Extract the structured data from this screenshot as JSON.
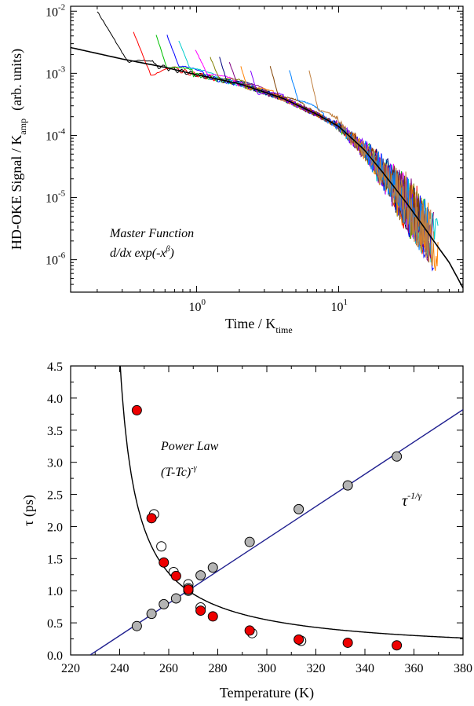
{
  "chart_data": [
    {
      "type": "line",
      "xscale": "log",
      "yscale": "log",
      "xlim": [
        0.13,
        75
      ],
      "ylim": [
        3e-07,
        0.012
      ],
      "xlabel": "Time /  K",
      "xlabel_sub": "time",
      "ylabel": "HD-OKE Signal / K",
      "ylabel_sub": "amp",
      "ylabel_suffix": "(arb. units)",
      "x_ticks": [
        {
          "base": "10",
          "exp": "0",
          "value": 1
        },
        {
          "base": "10",
          "exp": "1",
          "value": 10
        }
      ],
      "y_ticks": [
        {
          "base": "10",
          "exp": "-2",
          "value": 0.01
        },
        {
          "base": "10",
          "exp": "-3",
          "value": 0.001
        },
        {
          "base": "10",
          "exp": "-4",
          "value": 0.0001
        },
        {
          "base": "10",
          "exp": "-5",
          "value": 1e-05
        },
        {
          "base": "10",
          "exp": "-6",
          "value": 1e-06
        }
      ],
      "annotations": [
        "Master Function",
        "d/dx exp(-x",
        "β",
        ")"
      ],
      "master_function": {
        "x": [
          0.13,
          0.3,
          0.6,
          1.0,
          2.0,
          4.0,
          7.0,
          10.0,
          15.0,
          20.0,
          30.0,
          40.0,
          50.0,
          60.0,
          75.0
        ],
        "y": [
          0.0026,
          0.0017,
          0.00125,
          0.00095,
          0.00068,
          0.0004,
          0.00022,
          0.00014,
          6e-05,
          2.7e-05,
          8.2e-06,
          3.3e-06,
          1.6e-06,
          9e-07,
          3.5e-07
        ]
      },
      "series": [
        {
          "color": "#000000",
          "x0": 0.2,
          "y_peak": 0.01,
          "dip_x": 0.33,
          "dip_y": 0.0015
        },
        {
          "color": "#ff0000",
          "x0": 0.36,
          "y_peak": 0.0046,
          "dip_x": 0.48,
          "dip_y": 0.0009
        },
        {
          "color": "#00c000",
          "x0": 0.52,
          "y_peak": 0.0041,
          "dip_x": 0.62,
          "dip_y": 0.0012
        },
        {
          "color": "#0000ff",
          "x0": 0.62,
          "y_peak": 0.0041,
          "dip_x": 0.75,
          "dip_y": 0.0013
        },
        {
          "color": "#00cccc",
          "x0": 0.75,
          "y_peak": 0.0033,
          "dip_x": 0.9,
          "dip_y": 0.0012
        },
        {
          "color": "#ff00ff",
          "x0": 0.98,
          "y_peak": 0.0024,
          "dip_x": 1.2,
          "dip_y": 0.00094
        },
        {
          "color": "#808000",
          "x0": 1.25,
          "y_peak": 0.0018,
          "dip_x": 1.45,
          "dip_y": 0.0008
        },
        {
          "color": "#000080",
          "x0": 1.45,
          "y_peak": 0.0018,
          "dip_x": 1.65,
          "dip_y": 0.0007
        },
        {
          "color": "#800080",
          "x0": 1.7,
          "y_peak": 0.0015,
          "dip_x": 1.95,
          "dip_y": 0.00065
        },
        {
          "color": "#ff8000",
          "x0": 2.05,
          "y_peak": 0.0013,
          "dip_x": 2.3,
          "dip_y": 0.00055
        },
        {
          "color": "#8000ff",
          "x0": 2.4,
          "y_peak": 0.0011,
          "dip_x": 2.7,
          "dip_y": 0.00045
        },
        {
          "color": "#804000",
          "x0": 3.3,
          "y_peak": 0.0013,
          "dip_x": 3.8,
          "dip_y": 0.0004
        },
        {
          "color": "#0080ff",
          "x0": 4.5,
          "y_peak": 0.0011,
          "dip_x": 5.2,
          "dip_y": 0.00036
        },
        {
          "color": "#c08040",
          "x0": 6.2,
          "y_peak": 0.0011,
          "dip_x": 7.2,
          "dip_y": 0.00025
        }
      ]
    },
    {
      "type": "scatter",
      "xlim": [
        220,
        380
      ],
      "ylim": [
        0,
        4.5
      ],
      "xlabel": "Temperature (K)",
      "ylabel": "τ  (ps)",
      "x_ticks": [
        220,
        240,
        260,
        280,
        300,
        320,
        340,
        360,
        380
      ],
      "y_ticks": [
        0.0,
        0.5,
        1.0,
        1.5,
        2.0,
        2.5,
        3.0,
        3.5,
        4.0,
        4.5
      ],
      "x_tick_labels": [
        "220",
        "240",
        "260",
        "280",
        "300",
        "320",
        "340",
        "360",
        "380"
      ],
      "y_tick_labels": [
        "0.0",
        "0.5",
        "1.0",
        "1.5",
        "2.0",
        "2.5",
        "3.0",
        "3.5",
        "4.0",
        "4.5"
      ],
      "annotations": {
        "power_law_title": "Power Law",
        "power_law_formula": "(T-Tc)",
        "power_law_exp": "-γ",
        "tau_symbol": "τ",
        "tau_exp": "-1/γ"
      },
      "power_law_fit": {
        "Tc": 233.5,
        "A": 26.0,
        "gamma": 0.92,
        "color": "#000000"
      },
      "linear_fit": {
        "x": [
          228,
          380
        ],
        "y": [
          0,
          3.82
        ],
        "color": "#1f1f8f"
      },
      "tau_red": {
        "x": [
          247,
          253,
          258,
          263,
          268,
          273,
          278,
          293,
          313,
          333,
          353
        ],
        "y": [
          3.81,
          2.13,
          1.44,
          1.23,
          1.02,
          0.69,
          0.6,
          0.38,
          0.24,
          0.19,
          0.15
        ],
        "color": "#ee0000"
      },
      "tau_open": {
        "x": [
          254,
          257,
          262,
          268,
          273,
          294,
          314
        ],
        "y": [
          2.19,
          1.69,
          1.29,
          1.1,
          0.74,
          0.34,
          0.22
        ]
      },
      "inv_tau_grey": {
        "x": [
          247,
          253,
          258,
          263,
          268,
          273,
          278,
          293,
          313,
          333,
          353
        ],
        "y": [
          0.45,
          0.64,
          0.79,
          0.88,
          1.0,
          1.24,
          1.36,
          1.76,
          2.27,
          2.64,
          3.09
        ],
        "color": "#b4b4b4"
      },
      "inv_tau_open": {
        "x": [
          268
        ],
        "y": [
          1.04
        ]
      }
    }
  ]
}
